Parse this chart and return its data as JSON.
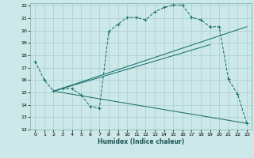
{
  "xlabel": "Humidex (Indice chaleur)",
  "bg_color": "#cce8e8",
  "grid_color": "#aacccc",
  "line_color": "#1a7070",
  "xlim": [
    -0.5,
    23.5
  ],
  "ylim": [
    12,
    22.2
  ],
  "xticks": [
    0,
    1,
    2,
    3,
    4,
    5,
    6,
    7,
    8,
    9,
    10,
    11,
    12,
    13,
    14,
    15,
    16,
    17,
    18,
    19,
    20,
    21,
    22,
    23
  ],
  "yticks": [
    12,
    13,
    14,
    15,
    16,
    17,
    18,
    19,
    20,
    21,
    22
  ],
  "curve1_x": [
    0,
    1,
    2,
    3,
    4,
    5,
    6,
    7,
    8,
    9,
    10,
    11,
    12,
    13,
    14,
    15,
    16,
    17,
    18,
    19,
    20,
    21,
    22,
    23
  ],
  "curve1_y": [
    17.5,
    16.0,
    15.1,
    15.3,
    15.3,
    14.8,
    13.85,
    13.75,
    19.9,
    20.5,
    21.05,
    21.05,
    20.85,
    21.5,
    21.85,
    22.05,
    22.05,
    21.05,
    20.85,
    20.3,
    20.3,
    16.05,
    14.85,
    12.5
  ],
  "line2_x": [
    2,
    23
  ],
  "line2_y": [
    15.1,
    20.3
  ],
  "line3_x": [
    2,
    23
  ],
  "line3_y": [
    15.1,
    12.5
  ],
  "line4_x": [
    2,
    19
  ],
  "line4_y": [
    15.1,
    18.85
  ]
}
